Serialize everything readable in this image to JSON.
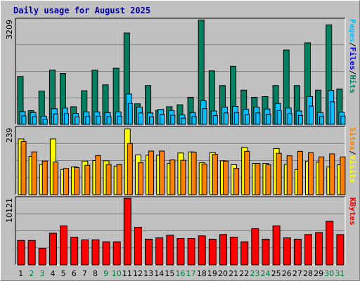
{
  "chart_data": {
    "title": "Daily usage for August 2025",
    "type": "bar",
    "x": [
      "1",
      "2",
      "3",
      "4",
      "5",
      "6",
      "7",
      "8",
      "9",
      "10",
      "11",
      "12",
      "13",
      "14",
      "15",
      "16",
      "17",
      "18",
      "19",
      "20",
      "21",
      "22",
      "23",
      "24",
      "25",
      "26",
      "27",
      "28",
      "29",
      "30",
      "31"
    ],
    "weekend_days": [
      "2",
      "3",
      "9",
      "10",
      "16",
      "17",
      "23",
      "24",
      "30",
      "31"
    ],
    "colors": {
      "hits": "#008060",
      "files": "#00c0ff",
      "visits": "#ffff00",
      "sites": "#ff8000",
      "kbytes": "#ff0000",
      "weekday_label": "#000000",
      "weekend_label": "#008040",
      "title": "#0000a0",
      "legend_pages": "#00c0ff",
      "legend_files": "#0000ff",
      "legend_hits": "#008060",
      "legend_sep": "#000000",
      "legend_visits": "#ffff00",
      "legend_sites": "#ff8000",
      "legend_kbytes": "#ff0000"
    },
    "panels": [
      {
        "id": "hits",
        "max_label": "3209",
        "ylim": [
          0,
          3209
        ],
        "legend": [
          {
            "text": "Pages",
            "color": "legend_pages"
          },
          {
            "text": "/",
            "color": "legend_sep"
          },
          {
            "text": "Files",
            "color": "legend_files"
          },
          {
            "text": "/",
            "color": "legend_sep"
          },
          {
            "text": "Hits",
            "color": "legend_hits"
          }
        ],
        "series": [
          {
            "name": "Hits",
            "color": "hits",
            "values": [
              1470,
              420,
              1020,
              1660,
              1560,
              540,
              1030,
              1660,
              1210,
              1720,
              2800,
              630,
              1190,
              430,
              540,
              600,
              830,
              3200,
              1640,
              1190,
              1780,
              1050,
              830,
              850,
              1190,
              2280,
              1190,
              2500,
              1050,
              3050,
              1080
            ]
          },
          {
            "name": "Files",
            "color": "files",
            "values": [
              390,
              360,
              250,
              480,
              500,
              330,
              380,
              380,
              360,
              380,
              930,
              530,
              350,
              460,
              420,
              290,
              360,
              720,
              410,
              530,
              550,
              460,
              530,
              470,
              640,
              500,
              410,
              850,
              360,
              1040,
              370
            ]
          },
          {
            "name": "Pages",
            "color": "files",
            "values": [
              260,
              240,
              160,
              320,
              330,
              230,
              250,
              250,
              240,
              250,
              640,
              350,
              230,
              310,
              280,
              190,
              240,
              480,
              270,
              350,
              360,
              300,
              350,
              310,
              420,
              330,
              270,
              560,
              240,
              690,
              250
            ]
          }
        ]
      },
      {
        "id": "visits",
        "max_label": "239",
        "ylim": [
          0,
          239
        ],
        "legend": [
          {
            "text": "Sites",
            "color": "legend_sites"
          },
          {
            "text": "/",
            "color": "legend_sep"
          },
          {
            "text": "Visits",
            "color": "legend_visits"
          }
        ],
        "series": [
          {
            "name": "Visits",
            "color": "visits",
            "values": [
              199,
              137,
              108,
              199,
              90,
              99,
              120,
              122,
              121,
              102,
              235,
              142,
              141,
              141,
              112,
              149,
              153,
              114,
              150,
              121,
              107,
              169,
              112,
              112,
              165,
              108,
              90,
              119,
              116,
              99,
              107
            ]
          },
          {
            "name": "Sites",
            "color": "sites",
            "values": [
              190,
              153,
              120,
              117,
              94,
              97,
              105,
              140,
              108,
              108,
              183,
              114,
              156,
              156,
              124,
              123,
              152,
              109,
              144,
              120,
              94,
              155,
              112,
              107,
              148,
              139,
              155,
              150,
              135,
              146,
              135
            ]
          }
        ]
      },
      {
        "id": "kbytes",
        "max_label": "10121",
        "ylim": [
          0,
          10121
        ],
        "legend": [
          {
            "text": "KBytes",
            "color": "legend_kbytes"
          }
        ],
        "series": [
          {
            "name": "KBytes",
            "color": "kbytes",
            "values": [
              3700,
              3700,
              2500,
              4800,
              5900,
              4200,
              3800,
              3800,
              3500,
              3500,
              10100,
              5700,
              3900,
              4100,
              4500,
              4000,
              4000,
              4400,
              3900,
              4600,
              4200,
              3500,
              5500,
              3900,
              5900,
              4100,
              3900,
              4600,
              4900,
              6600,
              4600
            ]
          }
        ]
      }
    ]
  }
}
